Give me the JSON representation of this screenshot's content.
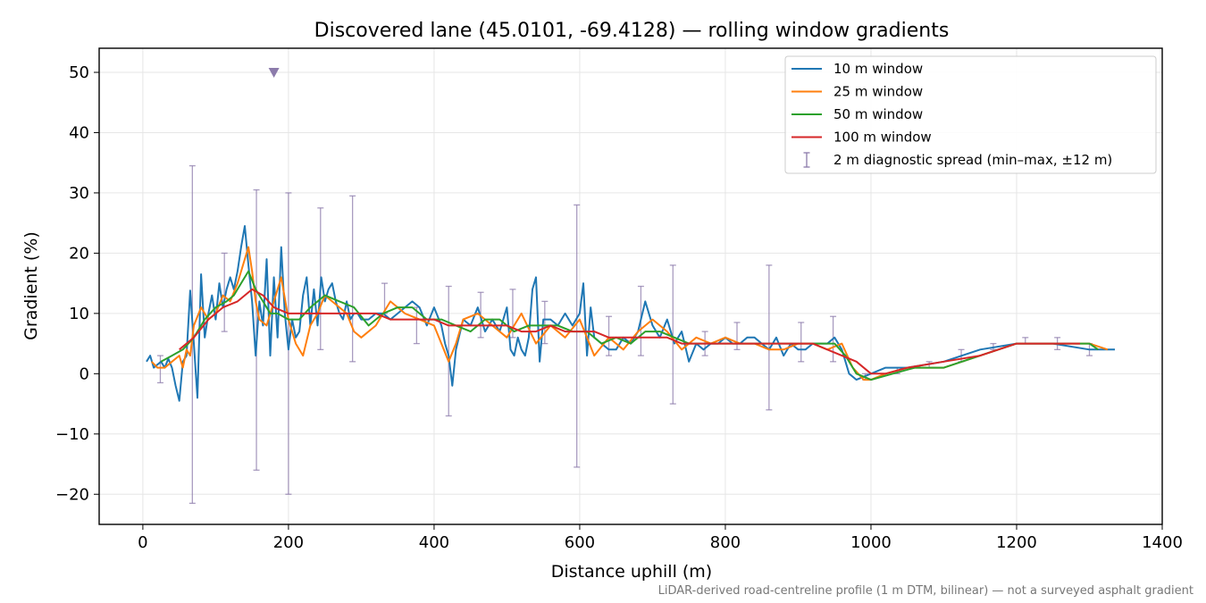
{
  "chart_data": {
    "type": "line",
    "title": "Discovered lane (45.0101, -69.4128) — rolling window gradients",
    "xlabel": "Distance uphill (m)",
    "ylabel": "Gradient (%)",
    "xlim": [
      -60,
      1400
    ],
    "ylim": [
      -25,
      54
    ],
    "xticks": [
      0,
      200,
      400,
      600,
      800,
      1000,
      1200,
      1400
    ],
    "xtick_labels": [
      "0",
      "200",
      "400",
      "600",
      "800",
      "1000",
      "1200",
      "1400"
    ],
    "yticks": [
      -20,
      -10,
      0,
      10,
      20,
      30,
      40,
      50
    ],
    "ytick_labels": [
      "−20",
      "−10",
      "0",
      "10",
      "20",
      "30",
      "40",
      "50"
    ],
    "grid": true,
    "legend_position": "top-right",
    "footnote": "LiDAR-derived road-centreline profile (1 m DTM, bilinear) — not a surveyed asphalt gradient",
    "marker": {
      "x": 180,
      "y": 50,
      "shape": "triangle-down",
      "color": "#8c7bab"
    },
    "series": [
      {
        "name": "10 m window",
        "color": "#1f77b4",
        "x": [
          5,
          10,
          15,
          20,
          25,
          30,
          35,
          40,
          45,
          50,
          55,
          60,
          65,
          70,
          75,
          80,
          85,
          90,
          95,
          100,
          105,
          110,
          115,
          120,
          125,
          130,
          135,
          140,
          145,
          150,
          155,
          160,
          165,
          170,
          175,
          180,
          185,
          190,
          195,
          200,
          205,
          210,
          215,
          220,
          225,
          230,
          235,
          240,
          245,
          250,
          255,
          260,
          265,
          270,
          275,
          280,
          285,
          290,
          295,
          300,
          310,
          320,
          330,
          340,
          350,
          360,
          370,
          380,
          390,
          400,
          410,
          415,
          420,
          425,
          430,
          440,
          450,
          460,
          470,
          480,
          490,
          500,
          505,
          510,
          515,
          520,
          525,
          530,
          535,
          540,
          545,
          550,
          560,
          570,
          580,
          590,
          600,
          605,
          610,
          615,
          620,
          630,
          640,
          650,
          660,
          670,
          680,
          690,
          700,
          710,
          720,
          730,
          740,
          750,
          760,
          770,
          780,
          790,
          800,
          810,
          820,
          830,
          840,
          850,
          860,
          870,
          880,
          890,
          900,
          910,
          920,
          930,
          940,
          950,
          960,
          970,
          980,
          1000,
          1020,
          1050,
          1100,
          1150,
          1200,
          1250,
          1300,
          1335
        ],
        "y": [
          2,
          3,
          1,
          1.5,
          2,
          1,
          2.5,
          1,
          -2,
          -4.5,
          2,
          3,
          13.8,
          5,
          -4,
          16.5,
          6,
          10,
          13,
          9,
          15,
          11,
          14,
          16,
          14,
          17,
          21,
          24.5,
          18,
          12,
          3,
          12,
          8,
          19,
          3,
          16,
          6,
          21,
          10,
          4,
          9,
          6,
          7,
          13,
          16,
          8,
          14,
          8,
          16,
          12,
          14,
          15,
          12,
          10,
          9,
          12,
          9,
          10,
          10,
          9,
          9,
          10,
          10,
          9,
          10,
          11,
          12,
          11,
          8,
          11,
          8,
          5,
          3,
          -2,
          4,
          9,
          8,
          11,
          7,
          9,
          7,
          11,
          4,
          3,
          6,
          4,
          3,
          6,
          14,
          16,
          2,
          9,
          9,
          8,
          10,
          8,
          10,
          15,
          3,
          11,
          6,
          5,
          4,
          4,
          6,
          5,
          7,
          12,
          8,
          6,
          9,
          5,
          7,
          2,
          5,
          4,
          5,
          5,
          6,
          5,
          5,
          6,
          6,
          5,
          4,
          6,
          3,
          5,
          4,
          4,
          5,
          5,
          5,
          6,
          4,
          0,
          -1,
          0,
          1,
          1,
          2,
          4,
          5,
          5,
          4,
          4
        ]
      },
      {
        "name": "25 m window",
        "color": "#ff7f0e",
        "x": [
          12,
          20,
          30,
          40,
          50,
          55,
          60,
          65,
          70,
          80,
          90,
          100,
          110,
          120,
          130,
          140,
          145,
          150,
          155,
          160,
          170,
          180,
          190,
          200,
          210,
          220,
          230,
          240,
          250,
          260,
          270,
          280,
          290,
          300,
          320,
          340,
          360,
          380,
          400,
          410,
          420,
          430,
          440,
          460,
          480,
          500,
          520,
          540,
          560,
          580,
          600,
          620,
          640,
          660,
          680,
          700,
          720,
          740,
          760,
          780,
          800,
          820,
          840,
          860,
          880,
          900,
          920,
          940,
          960,
          975,
          990,
          1000,
          1020,
          1050,
          1100,
          1150,
          1200,
          1250,
          1300,
          1325
        ],
        "y": [
          2,
          1,
          1,
          2,
          3,
          1,
          4,
          3,
          8,
          11,
          9,
          10,
          13,
          12,
          15,
          19,
          21,
          17,
          12,
          9,
          8,
          12,
          16,
          9,
          5,
          3,
          8,
          10,
          13,
          12,
          11,
          10,
          7,
          6,
          8,
          12,
          10,
          9,
          8,
          5,
          2,
          5,
          9,
          10,
          8,
          6,
          10,
          5,
          8,
          6,
          9,
          3,
          6,
          4,
          7,
          9,
          7,
          4,
          6,
          5,
          6,
          5,
          5,
          4,
          4,
          5,
          5,
          4,
          5,
          1,
          -1,
          -1,
          0,
          1,
          1,
          3,
          5,
          5,
          5,
          4
        ]
      },
      {
        "name": "50 m window",
        "color": "#2ca02c",
        "x": [
          25,
          40,
          55,
          70,
          85,
          100,
          115,
          125,
          135,
          145,
          155,
          165,
          175,
          185,
          200,
          215,
          230,
          250,
          270,
          290,
          310,
          330,
          350,
          370,
          390,
          410,
          430,
          450,
          470,
          490,
          510,
          530,
          550,
          570,
          590,
          610,
          630,
          650,
          670,
          690,
          710,
          730,
          750,
          770,
          790,
          810,
          830,
          850,
          870,
          890,
          910,
          930,
          950,
          965,
          980,
          1000,
          1030,
          1060,
          1100,
          1150,
          1200,
          1250,
          1300,
          1312
        ],
        "y": [
          2,
          3,
          4,
          6,
          9,
          11,
          12,
          13,
          15,
          17,
          14,
          12,
          10,
          10,
          9,
          9,
          11,
          13,
          12,
          11,
          8,
          10,
          11,
          11,
          9,
          9,
          8,
          7,
          9,
          9,
          7,
          8,
          8,
          8,
          7,
          7,
          5,
          6,
          5,
          7,
          7,
          6,
          5,
          5,
          5,
          5,
          5,
          5,
          5,
          5,
          5,
          5,
          5,
          3,
          0,
          -1,
          0,
          1,
          1,
          3,
          5,
          5,
          5,
          4
        ]
      },
      {
        "name": "100 m window",
        "color": "#d62728",
        "x": [
          50,
          70,
          90,
          110,
          130,
          150,
          165,
          180,
          200,
          220,
          240,
          260,
          280,
          300,
          320,
          340,
          360,
          380,
          400,
          420,
          440,
          460,
          480,
          500,
          520,
          540,
          560,
          580,
          600,
          620,
          640,
          660,
          680,
          700,
          720,
          740,
          760,
          780,
          800,
          820,
          840,
          860,
          880,
          900,
          920,
          940,
          960,
          980,
          1000,
          1020,
          1050,
          1100,
          1150,
          1200,
          1250,
          1287
        ],
        "y": [
          4,
          6,
          9,
          11,
          12,
          14,
          13,
          11,
          10,
          10,
          10,
          10,
          10,
          10,
          10,
          9,
          9,
          9,
          9,
          8,
          8,
          8,
          8,
          8,
          7,
          7,
          8,
          7,
          7,
          7,
          6,
          6,
          6,
          6,
          6,
          5,
          5,
          5,
          5,
          5,
          5,
          5,
          5,
          5,
          5,
          4,
          3,
          2,
          0,
          0,
          1,
          2,
          3,
          5,
          5,
          5
        ]
      },
      {
        "name": "2 m diagnostic spread (min–max, ±12 m)",
        "color": "#8c7bab",
        "errorbar": true,
        "x": [
          24,
          68,
          112,
          156,
          200,
          244,
          288,
          332,
          376,
          420,
          464,
          508,
          552,
          596,
          640,
          684,
          728,
          772,
          816,
          860,
          904,
          948,
          992,
          1036,
          1080,
          1124,
          1168,
          1212,
          1256,
          1300
        ],
        "low": [
          -1.5,
          -21.5,
          7,
          -16,
          -20,
          4,
          2,
          10,
          5,
          -7,
          6,
          6,
          5,
          -15.5,
          3,
          3,
          -5,
          3,
          4,
          -6,
          2,
          2,
          -1,
          0,
          1,
          2,
          4,
          5,
          4,
          3
        ],
        "high": [
          3,
          34.5,
          20,
          30.5,
          30,
          27.5,
          29.5,
          15,
          11,
          14.5,
          13.5,
          14,
          12,
          28,
          9.5,
          14.5,
          18,
          7,
          8.5,
          18,
          8.5,
          9.5,
          0,
          1,
          2,
          4,
          5,
          6,
          6,
          5
        ]
      }
    ]
  }
}
